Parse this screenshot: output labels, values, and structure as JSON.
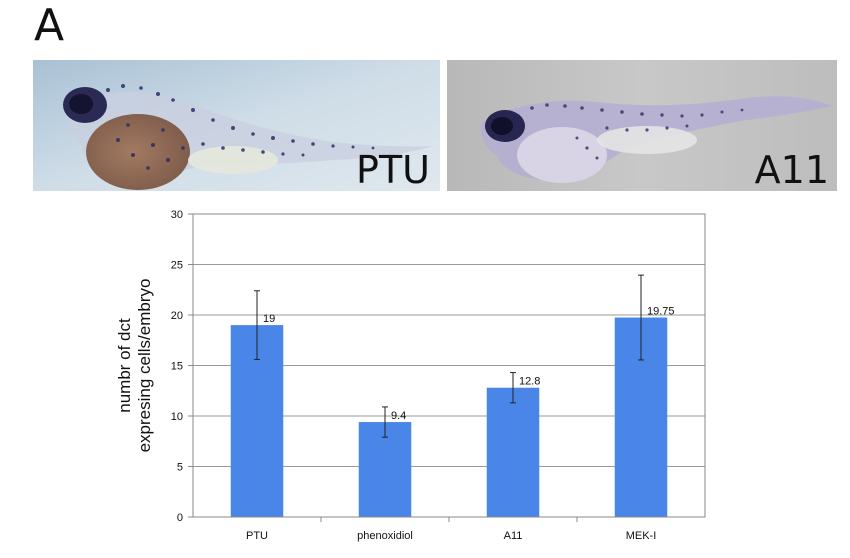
{
  "panel_label": "A",
  "photos": [
    {
      "label": "PTU",
      "icon": "zebrafish-embryo-image"
    },
    {
      "label": "A11",
      "icon": "zebrafish-embryo-image"
    }
  ],
  "chart_data": {
    "type": "bar",
    "categories": [
      "PTU",
      "phenoxidiol",
      "A11",
      "MEK-I"
    ],
    "values": [
      19,
      9.4,
      12.8,
      19.75
    ],
    "value_labels": [
      "19",
      "9.4",
      "12.8",
      "19.75"
    ],
    "error": [
      3.4,
      1.5,
      1.5,
      4.2
    ],
    "title": "",
    "xlabel": "",
    "ylabel_lines": [
      "numbr of dct",
      "expresing cells/embryo"
    ],
    "ylim": [
      0,
      30
    ],
    "yticks": [
      0,
      5,
      10,
      15,
      20,
      25,
      30
    ],
    "grid": true,
    "bar_color": "#4a86e8"
  }
}
